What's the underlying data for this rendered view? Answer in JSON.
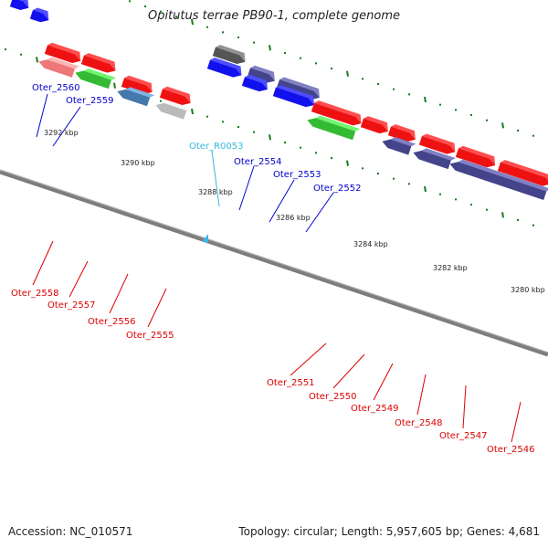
{
  "title": "Opitutus terrae PB90-1, complete genome",
  "footer": {
    "accession": "Accession: NC_010571",
    "summary": "Topology: circular; Length: 5,957,605 bp; Genes: 4,681"
  },
  "colors": {
    "backbone": "#7d7d7d",
    "tick": "#1a7a1a",
    "label_forward": "#0000cc",
    "label_reverse": "#dd0000",
    "label_rna": "#33bbdd",
    "gene_red": "#ee1111",
    "gene_pink": "#ee7777",
    "gene_green": "#33bb33",
    "gene_blue": "#1111ee",
    "gene_steel": "#4477aa",
    "gene_purple": "#44448a",
    "gene_gray": "#bbbbbb",
    "gene_darkgray": "#555555",
    "gene_cyan": "#33bbee"
  },
  "kbp_labels": [
    "3292 kbp",
    "3290 kbp",
    "3288 kbp",
    "3286 kbp",
    "3284 kbp",
    "3282 kbp",
    "3280 kbp"
  ],
  "genes_forward": [
    "Oter_2560",
    "Oter_2559",
    "Oter_R0053",
    "Oter_2554",
    "Oter_2553",
    "Oter_2552"
  ],
  "genes_reverse": [
    "Oter_2558",
    "Oter_2557",
    "Oter_2556",
    "Oter_2555",
    "Oter_2551",
    "Oter_2550",
    "Oter_2549",
    "Oter_2548",
    "Oter_2547",
    "Oter_2546"
  ]
}
